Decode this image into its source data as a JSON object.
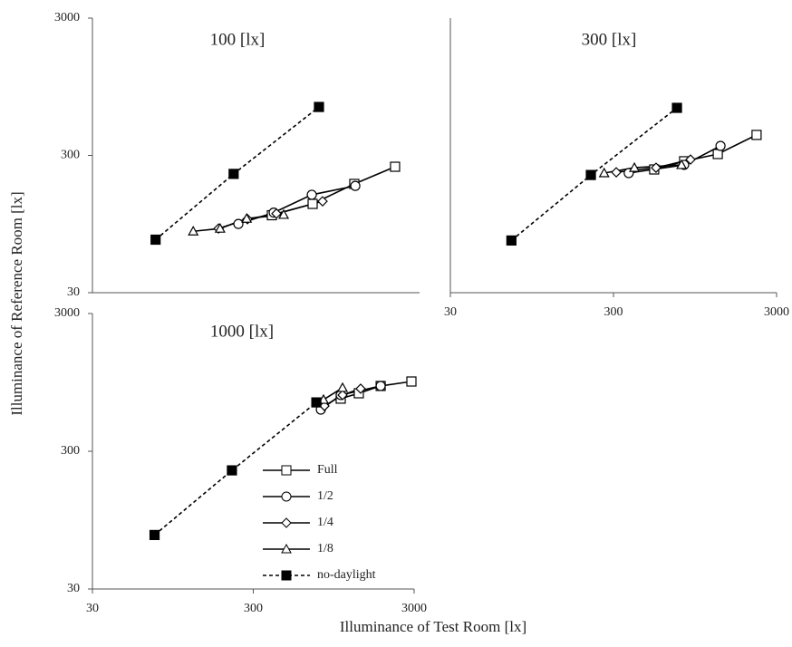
{
  "chart_data": [
    {
      "type": "line",
      "title": "100 [lx]",
      "ylabel": "Illuminance of Reference Room [lx]",
      "xscale": "log",
      "yscale": "log",
      "xlim": [
        30,
        3000
      ],
      "ylim": [
        30,
        3000
      ],
      "yticks": [
        30,
        300,
        3000
      ],
      "series": [
        {
          "marker": "square",
          "color": "#000000",
          "linestyle": "solid",
          "x": [
            375,
            666,
            1197,
            2125
          ],
          "values": [
            110,
            133,
            186,
            248
          ]
        },
        {
          "marker": "circle",
          "color": "#000000",
          "linestyle": "solid",
          "x": [
            234,
            385,
            658,
            1214
          ],
          "values": [
            95,
            115,
            155,
            180
          ]
        },
        {
          "marker": "diamond",
          "color": "#000000",
          "linestyle": "solid",
          "x": [
            177,
            266,
            400,
            766
          ],
          "values": [
            88,
            103,
            113,
            139
          ]
        },
        {
          "marker": "triangle",
          "color": "#000000",
          "linestyle": "solid",
          "x": [
            124,
            181,
            263,
            443
          ],
          "values": [
            84,
            88,
            104,
            111
          ]
        },
        {
          "marker": "filled-square",
          "color": "#000000",
          "linestyle": "dashed",
          "x": [
            73,
            219,
            728
          ],
          "values": [
            73,
            220,
            676
          ]
        }
      ]
    },
    {
      "type": "line",
      "title": "300 [lx]",
      "xscale": "log",
      "yscale": "log",
      "xlim": [
        30,
        3000
      ],
      "ylim": [
        30,
        3000
      ],
      "xticks": [
        30,
        300,
        3000
      ],
      "series": [
        {
          "marker": "square",
          "color": "#000000",
          "linestyle": "solid",
          "x": [
            533,
            813,
            1308,
            2261
          ],
          "values": [
            237,
            272,
            307,
            423
          ]
        },
        {
          "marker": "circle",
          "color": "#000000",
          "linestyle": "solid",
          "x": [
            372,
            813,
            1359
          ],
          "values": [
            223,
            256,
            352
          ]
        },
        {
          "marker": "diamond",
          "color": "#000000",
          "linestyle": "solid",
          "x": [
            312,
            547,
            890
          ],
          "values": [
            226,
            244,
            280
          ]
        },
        {
          "marker": "triangle",
          "color": "#000000",
          "linestyle": "solid",
          "x": [
            263,
            403,
            784
          ],
          "values": [
            223,
            244,
            256
          ]
        },
        {
          "marker": "filled-square",
          "color": "#000000",
          "linestyle": "dashed",
          "x": [
            71,
            218,
            735
          ],
          "values": [
            72,
            216,
            666
          ]
        }
      ]
    },
    {
      "type": "line",
      "title": "1000 [lx]",
      "xlabel": "Illuminance of Test Room [lx]",
      "xscale": "log",
      "yscale": "log",
      "xlim": [
        30,
        3000
      ],
      "ylim": [
        30,
        3000
      ],
      "xticks": [
        30,
        300,
        3000
      ],
      "yticks": [
        30,
        300,
        3000
      ],
      "legend": "lower-center",
      "series": [
        {
          "name": "Full",
          "marker": "square",
          "color": "#000000",
          "linestyle": "solid",
          "x": [
            1049,
            1359,
            1858,
            2886
          ],
          "values": [
            723,
            791,
            894,
            963
          ]
        },
        {
          "name": "1/2",
          "marker": "circle",
          "color": "#000000",
          "linestyle": "solid",
          "x": [
            789,
            1049,
            1858
          ],
          "values": [
            602,
            768,
            894
          ]
        },
        {
          "name": "1/4",
          "marker": "diamond",
          "color": "#000000",
          "linestyle": "solid",
          "x": [
            831,
            1077,
            1395
          ],
          "values": [
            640,
            768,
            854
          ]
        },
        {
          "name": "1/8",
          "marker": "triangle",
          "color": "#000000",
          "linestyle": "solid",
          "x": [
            820,
            1077
          ],
          "values": [
            711,
            867
          ]
        },
        {
          "name": "no-daylight",
          "marker": "filled-square",
          "color": "#000000",
          "linestyle": "dashed",
          "x": [
            73,
            221,
            740
          ],
          "values": [
            74,
            218,
            679
          ]
        }
      ]
    }
  ]
}
